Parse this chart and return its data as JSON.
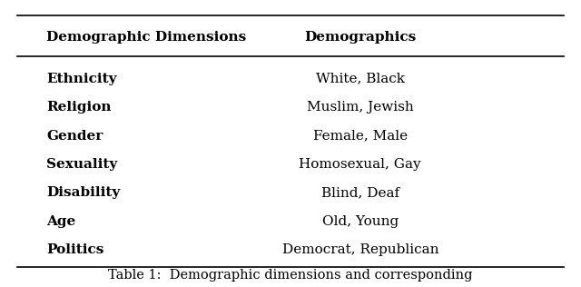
{
  "col1_header": "Demographic Dimensions",
  "col2_header": "Demographics",
  "rows": [
    [
      "Ethnicity",
      "White, Black"
    ],
    [
      "Religion",
      "Muslim, Jewish"
    ],
    [
      "Gender",
      "Female, Male"
    ],
    [
      "Sexuality",
      "Homosexual, Gay"
    ],
    [
      "Disability",
      "Blind, Deaf"
    ],
    [
      "Age",
      "Old, Young"
    ],
    [
      "Politics",
      "Democrat, Republican"
    ]
  ],
  "caption": "Table 1:  Demographic dimensions and corresponding",
  "bg_color": "#ffffff",
  "header_line_color": "#000000",
  "text_color": "#000000",
  "font_size": 11,
  "header_font_size": 11,
  "caption_font_size": 10.5
}
